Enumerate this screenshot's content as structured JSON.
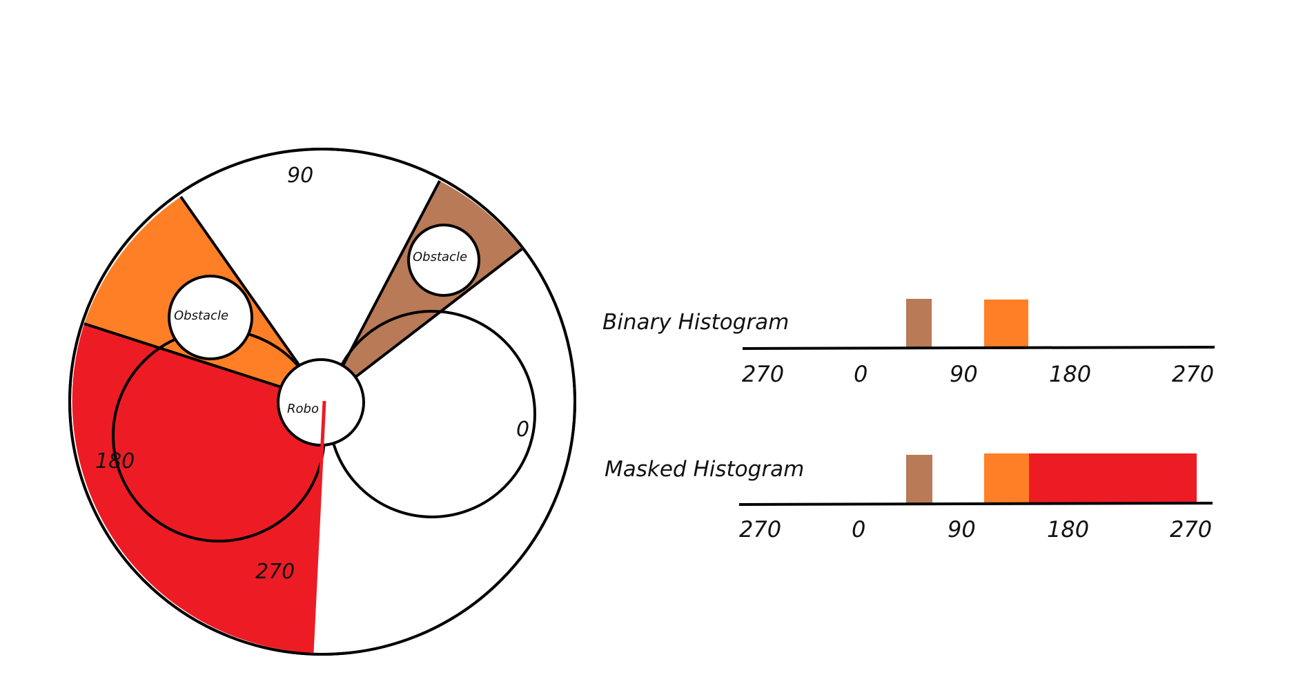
{
  "colors": {
    "brown": "#b97a57",
    "orange": "#ff7f27",
    "red": "#ed1c24",
    "line": "#000000"
  },
  "polar": {
    "angle_labels": [
      "90",
      "0",
      "180",
      "270"
    ],
    "robot_label": "Robo",
    "obstacle_labels": [
      "Obstacle",
      "Obstacle"
    ]
  },
  "histograms": [
    {
      "title": "Binary Histogram",
      "tick_labels": [
        "270",
        "0",
        "90",
        "180",
        "270"
      ],
      "blocks": [
        "brown",
        "orange"
      ]
    },
    {
      "title": "Masked Histogram",
      "tick_labels": [
        "270",
        "0",
        "90",
        "180",
        "270"
      ],
      "blocks": [
        "brown",
        "orange",
        "red"
      ]
    }
  ]
}
